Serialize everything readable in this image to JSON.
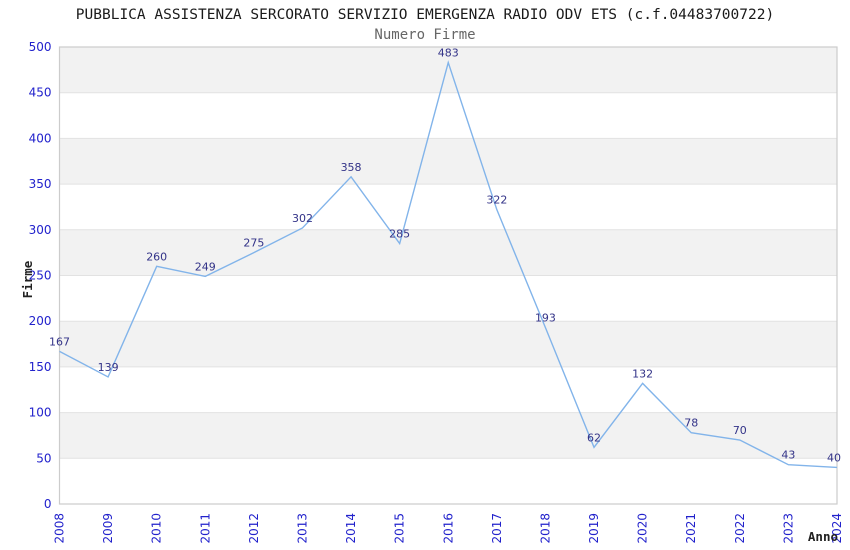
{
  "chart_data": {
    "type": "line",
    "title": "PUBBLICA ASSISTENZA SERCORATO SERVIZIO EMERGENZA RADIO ODV ETS (c.f.04483700722)",
    "subtitle": "Numero Firme",
    "xlabel": "Anno",
    "ylabel": "Firme",
    "categories": [
      "2008",
      "2009",
      "2010",
      "2011",
      "2012",
      "2013",
      "2014",
      "2015",
      "2016",
      "2017",
      "2018",
      "2019",
      "2020",
      "2021",
      "2022",
      "2023",
      "2024"
    ],
    "values": [
      167,
      139,
      260,
      249,
      275,
      302,
      358,
      285,
      483,
      322,
      193,
      62,
      132,
      78,
      70,
      43,
      40
    ],
    "ylim": [
      0,
      500
    ],
    "yticks": [
      0,
      50,
      100,
      150,
      200,
      250,
      300,
      350,
      400,
      450,
      500
    ],
    "grid": "horizontal-bands",
    "legend": "none",
    "colors": {
      "line": "#82b4ea",
      "tick_label": "#2222cc",
      "point_label": "#333388",
      "band": "#f2f2f2",
      "grid_line": "#e2e2e2",
      "plot_border": "#cccccc",
      "axis_title": "#222222",
      "title": "#1a1a1a",
      "subtitle": "#666666"
    }
  }
}
